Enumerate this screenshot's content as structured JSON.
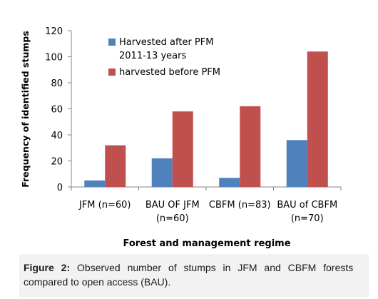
{
  "chart_data": {
    "type": "bar",
    "title": "",
    "xlabel": "Forest and management regime",
    "ylabel": "Frequency of identified stumps",
    "ylim": [
      0,
      120
    ],
    "yticks": [
      "0",
      "20",
      "40",
      "60",
      "80",
      "100",
      "120"
    ],
    "categories": [
      [
        "JFM  (n=60)"
      ],
      [
        "BAU OF JFM",
        "(n=60)"
      ],
      [
        "CBFM (n=83)"
      ],
      [
        "BAU of CBFM",
        "(n=70)"
      ]
    ],
    "series": [
      {
        "name": "Harvested  after PFM 2011-13 years",
        "legend_lines": [
          "Harvested  after PFM",
          "2011-13 years"
        ],
        "color": "#4F81BD",
        "values": [
          5,
          22,
          7,
          36
        ]
      },
      {
        "name": "harvested before PFM",
        "legend_lines": [
          "harvested before PFM"
        ],
        "color": "#C0504D",
        "values": [
          32,
          58,
          62,
          104
        ]
      }
    ],
    "grid": false,
    "legend_position": "top-left inside"
  },
  "caption": {
    "label": "Figure 2:",
    "line1_rest": "Observed number of stumps in JFM and CBFM forests",
    "line2": "compared to open access (BAU)."
  }
}
